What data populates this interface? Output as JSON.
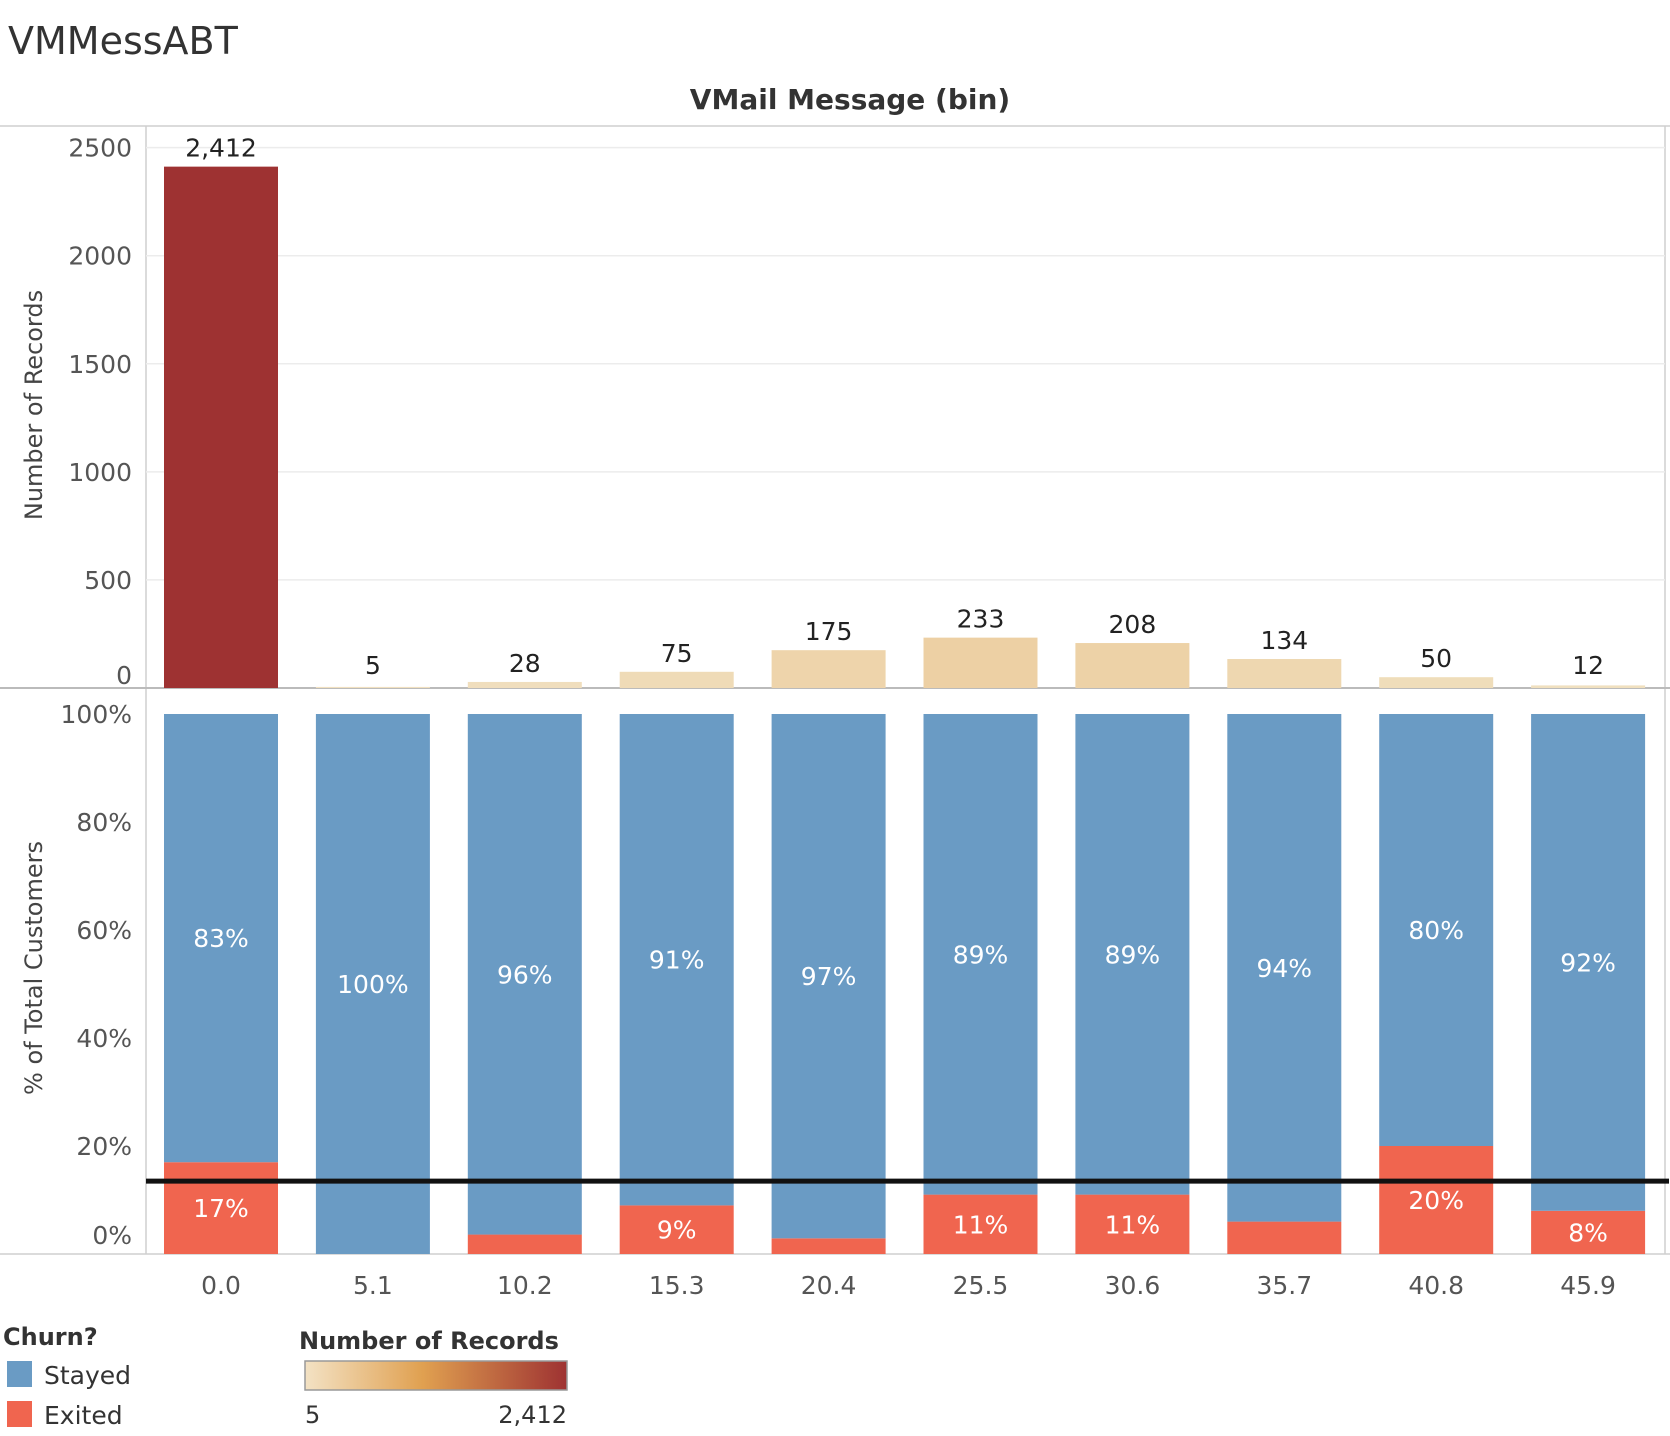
{
  "sheet_title": "VMMessABT",
  "chart_data": [
    {
      "type": "bar",
      "title": "VMail Message (bin)",
      "xlabel": "",
      "ylabel": "Number of Records",
      "categories": [
        "0.0",
        "5.1",
        "10.2",
        "15.3",
        "20.4",
        "25.5",
        "30.6",
        "35.7",
        "40.8",
        "45.9"
      ],
      "values": [
        2412,
        5,
        28,
        75,
        175,
        233,
        208,
        134,
        50,
        12
      ],
      "value_labels": [
        "2,412",
        "5",
        "28",
        "75",
        "175",
        "233",
        "208",
        "134",
        "50",
        "12"
      ],
      "ylim": [
        0,
        2600
      ],
      "yticks": [
        0,
        500,
        1000,
        1500,
        2000,
        2500
      ],
      "grid": true,
      "color_scale": {
        "field": "Number of Records",
        "min_color": "#f0e0c0",
        "mid_color": "#e0a050",
        "max_color": "#9e3232"
      }
    },
    {
      "type": "bar",
      "stacked": true,
      "xlabel": "",
      "ylabel": "% of Total Customers",
      "categories": [
        "0.0",
        "5.1",
        "10.2",
        "15.3",
        "20.4",
        "25.5",
        "30.6",
        "35.7",
        "40.8",
        "45.9"
      ],
      "ylim": [
        0,
        100
      ],
      "yticks": [
        "0%",
        "20%",
        "40%",
        "60%",
        "80%",
        "100%"
      ],
      "reference_line": 13.5,
      "series": [
        {
          "name": "Exited",
          "color": "#f0654f",
          "values": [
            17,
            0,
            3.6,
            9,
            2.9,
            11,
            11,
            6,
            20,
            8
          ],
          "labels": [
            "17%",
            "",
            "",
            "9%",
            "",
            "11%",
            "11%",
            "",
            "20%",
            "8%"
          ]
        },
        {
          "name": "Stayed",
          "color": "#6a9bc4",
          "values": [
            83,
            100,
            96.4,
            91,
            97.1,
            89,
            89,
            94,
            80,
            92
          ],
          "labels": [
            "83%",
            "100%",
            "96%",
            "91%",
            "97%",
            "89%",
            "89%",
            "94%",
            "80%",
            "92%"
          ]
        }
      ]
    }
  ],
  "legends": {
    "churn": {
      "title": "Churn?",
      "items": [
        {
          "label": "Stayed",
          "color": "#6a9bc4"
        },
        {
          "label": "Exited",
          "color": "#f0654f"
        }
      ]
    },
    "records": {
      "title": "Number of Records",
      "min_label": "5",
      "max_label": "2,412"
    }
  }
}
